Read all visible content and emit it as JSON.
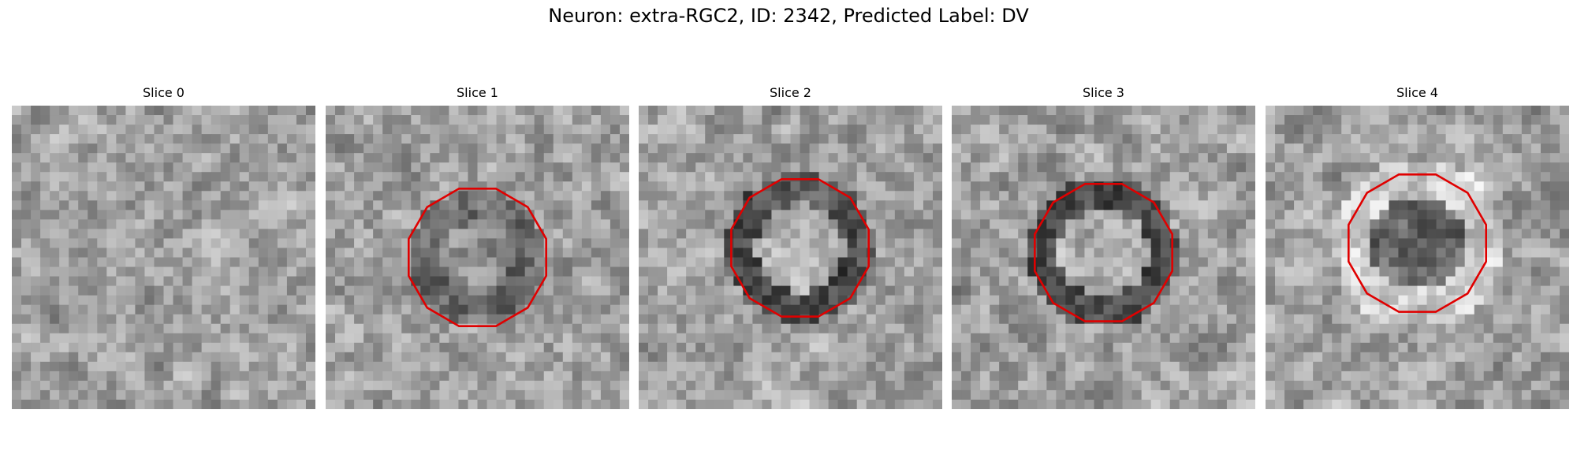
{
  "figure": {
    "title": "Neuron: extra-RGC2, ID: 2342, Predicted Label: DV",
    "contour_color": "#e00000"
  },
  "panels": [
    {
      "title": "Slice 0",
      "has_contour": false,
      "seed": 11,
      "pattern": "noise"
    },
    {
      "title": "Slice 1",
      "has_contour": true,
      "seed": 23,
      "pattern": "ring-faint"
    },
    {
      "title": "Slice 2",
      "has_contour": true,
      "seed": 37,
      "pattern": "ring-dark"
    },
    {
      "title": "Slice 3",
      "has_contour": true,
      "seed": 51,
      "pattern": "ring-dark"
    },
    {
      "title": "Slice 4",
      "has_contour": true,
      "seed": 67,
      "pattern": "bright-halo"
    }
  ]
}
